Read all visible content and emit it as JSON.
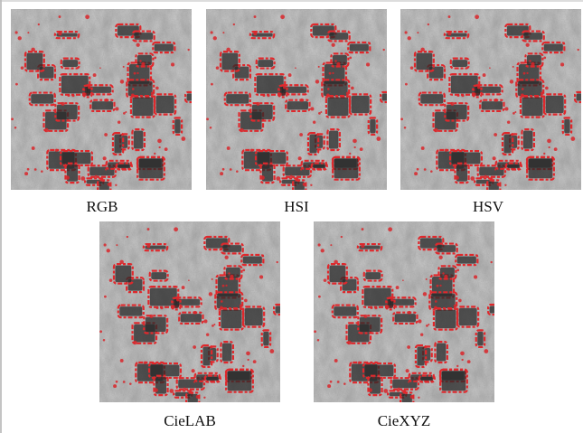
{
  "panels": [
    {
      "label": "RGB"
    },
    {
      "label": "HSI"
    },
    {
      "label": "HSV"
    },
    {
      "label": "CieLAB"
    },
    {
      "label": "CieXYZ"
    }
  ]
}
